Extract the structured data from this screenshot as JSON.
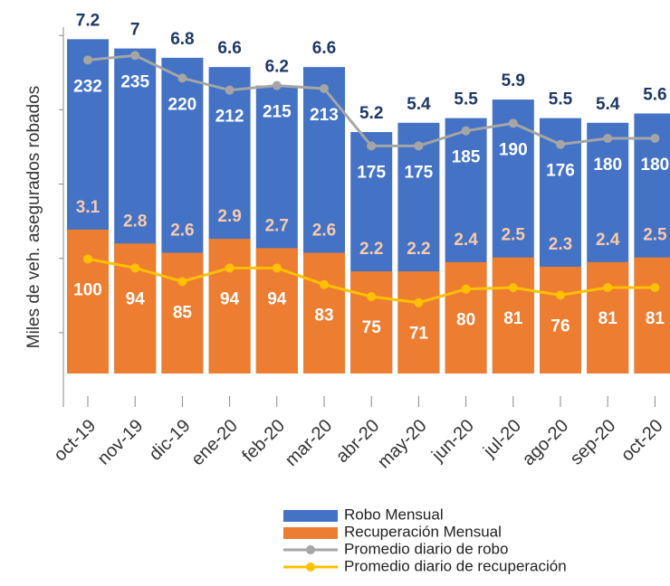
{
  "chart_data": {
    "type": "bar",
    "y_label": "Miles de veh. asegurados robados",
    "categories": [
      "oct-19",
      "nov-19",
      "dic-19",
      "ene-20",
      "feb-20",
      "mar-20",
      "abr-20",
      "may-20",
      "jun-20",
      "jul-20",
      "ago-20",
      "sep-20",
      "oct-20"
    ],
    "series": [
      {
        "name": "Robo Mensual",
        "type": "bar",
        "color": "#4472c4",
        "label_color": "#1f3864",
        "values": [
          7.2,
          7.0,
          6.8,
          6.6,
          6.2,
          6.6,
          5.2,
          5.4,
          5.5,
          5.9,
          5.5,
          5.4,
          5.6
        ]
      },
      {
        "name": "Recuperación Mensual",
        "type": "bar",
        "color": "#ed7d31",
        "label_color": "#f8cbad",
        "values": [
          3.1,
          2.8,
          2.6,
          2.9,
          2.7,
          2.6,
          2.2,
          2.2,
          2.4,
          2.5,
          2.3,
          2.4,
          2.5
        ]
      },
      {
        "name": "Promedio diario de robo",
        "type": "line",
        "axis": "y2",
        "color": "#a5a5a5",
        "label_color": "#ffffff",
        "values": [
          232,
          235,
          220,
          212,
          215,
          213,
          175,
          175,
          185,
          190,
          176,
          180,
          180
        ]
      },
      {
        "name": "Promedio diario de recuperación",
        "type": "line",
        "axis": "y2",
        "color": "#ffc000",
        "label_color": "#ffffff",
        "values": [
          100,
          94,
          85,
          94,
          94,
          83,
          75,
          71,
          80,
          81,
          76,
          81,
          81
        ]
      }
    ],
    "ylim": [
      -0.72,
      7.46
    ],
    "yticks": [
      0.88,
      2.48,
      4.08,
      5.68,
      7.28
    ],
    "y2lim": [
      0,
      252
    ],
    "legend": "bottom"
  }
}
